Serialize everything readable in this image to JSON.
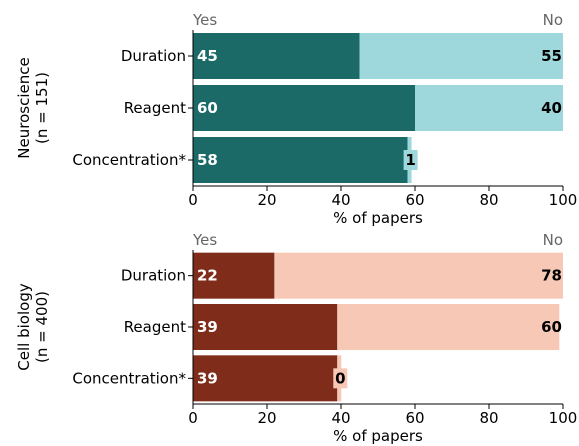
{
  "chart_data": [
    {
      "type": "bar",
      "orientation": "horizontal",
      "stacked": true,
      "group_label": [
        "Neuroscience",
        "(n = 151)"
      ],
      "header_left": "Yes",
      "header_right": "No",
      "categories": [
        "Duration",
        "Reagent",
        "Concentration*"
      ],
      "series": [
        {
          "name": "Yes",
          "values": [
            45,
            60,
            58
          ],
          "labels": [
            "45",
            "60",
            "58"
          ],
          "color": "#1b6a68"
        },
        {
          "name": "No",
          "values": [
            55,
            40,
            1
          ],
          "labels": [
            "55",
            "40",
            "1"
          ],
          "color": "#9fd8dc"
        }
      ],
      "xlabel": "% of papers",
      "xlim": [
        0,
        100
      ],
      "xticks": [
        0,
        20,
        40,
        60,
        80,
        100
      ]
    },
    {
      "type": "bar",
      "orientation": "horizontal",
      "stacked": true,
      "group_label": [
        "Cell biology",
        "(n = 400)"
      ],
      "header_left": "Yes",
      "header_right": "No",
      "categories": [
        "Duration",
        "Reagent",
        "Concentration*"
      ],
      "series": [
        {
          "name": "Yes",
          "values": [
            22,
            39,
            39
          ],
          "labels": [
            "22",
            "39",
            "39"
          ],
          "color": "#7f2c1a"
        },
        {
          "name": "No",
          "values": [
            78,
            60,
            0
          ],
          "labels": [
            "78",
            "60",
            "0"
          ],
          "color": "#f8c8b6"
        }
      ],
      "xlabel": "% of papers",
      "xlim": [
        0,
        100
      ],
      "xticks": [
        0,
        20,
        40,
        60,
        80,
        100
      ]
    }
  ]
}
